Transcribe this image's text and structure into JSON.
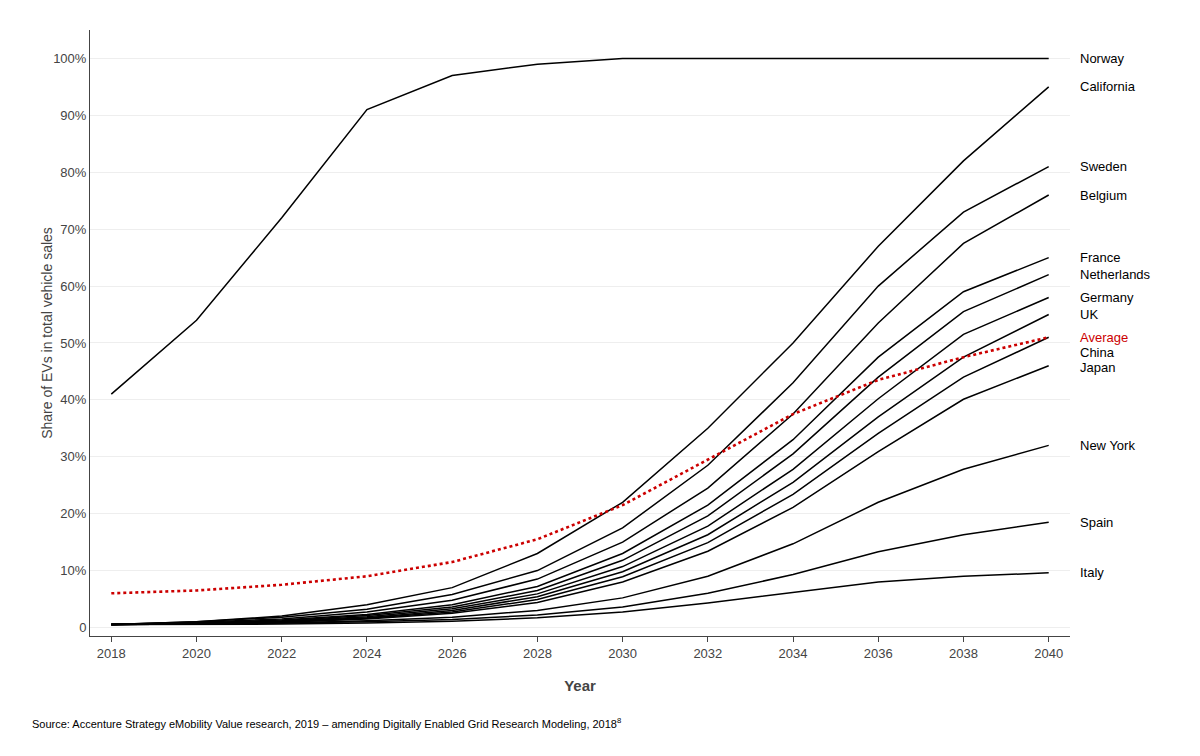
{
  "chart_data": {
    "type": "line",
    "xlabel": "Year",
    "ylabel": "Share of EVs in total vehicle sales",
    "x": [
      2018,
      2020,
      2022,
      2024,
      2026,
      2028,
      2030,
      2032,
      2034,
      2036,
      2038,
      2040
    ],
    "series": [
      {
        "name": "Norway",
        "color": "#000000",
        "line_style": "solid",
        "values": [
          0.41,
          0.54,
          0.72,
          0.91,
          0.97,
          0.99,
          1.0,
          1.0,
          1.0,
          1.0,
          1.0,
          1.0
        ]
      },
      {
        "name": "California",
        "color": "#000000",
        "line_style": "solid",
        "values": [
          0.005,
          0.01,
          0.02,
          0.04,
          0.07,
          0.13,
          0.22,
          0.35,
          0.5,
          0.67,
          0.82,
          0.95
        ]
      },
      {
        "name": "Sweden",
        "color": "#000000",
        "line_style": "solid",
        "values": [
          0.005,
          0.01,
          0.018,
          0.032,
          0.058,
          0.1,
          0.175,
          0.285,
          0.43,
          0.6,
          0.73,
          0.81
        ]
      },
      {
        "name": "Belgium",
        "color": "#000000",
        "line_style": "solid",
        "values": [
          0.005,
          0.009,
          0.015,
          0.027,
          0.048,
          0.085,
          0.15,
          0.245,
          0.375,
          0.535,
          0.675,
          0.76
        ]
      },
      {
        "name": "France",
        "color": "#000000",
        "line_style": "solid",
        "values": [
          0.005,
          0.008,
          0.013,
          0.023,
          0.04,
          0.072,
          0.13,
          0.215,
          0.33,
          0.475,
          0.59,
          0.65
        ]
      },
      {
        "name": "Netherlands",
        "color": "#000000",
        "line_style": "solid",
        "values": [
          0.005,
          0.007,
          0.012,
          0.021,
          0.036,
          0.065,
          0.118,
          0.196,
          0.305,
          0.44,
          0.555,
          0.62
        ]
      },
      {
        "name": "Germany",
        "color": "#000000",
        "line_style": "solid",
        "values": [
          0.005,
          0.007,
          0.011,
          0.019,
          0.033,
          0.059,
          0.107,
          0.178,
          0.278,
          0.402,
          0.515,
          0.58
        ]
      },
      {
        "name": "UK",
        "color": "#000000",
        "line_style": "solid",
        "values": [
          0.005,
          0.006,
          0.01,
          0.017,
          0.03,
          0.054,
          0.098,
          0.163,
          0.255,
          0.37,
          0.475,
          0.55
        ]
      },
      {
        "name": "Average",
        "color": "#cc0000",
        "line_style": "dotted",
        "values": [
          0.06,
          0.065,
          0.075,
          0.09,
          0.115,
          0.155,
          0.215,
          0.295,
          0.375,
          0.435,
          0.475,
          0.51
        ]
      },
      {
        "name": "China",
        "color": "#000000",
        "line_style": "solid",
        "values": [
          0.005,
          0.006,
          0.009,
          0.016,
          0.027,
          0.049,
          0.089,
          0.149,
          0.234,
          0.341,
          0.44,
          0.51
        ]
      },
      {
        "name": "Japan",
        "color": "#000000",
        "line_style": "solid",
        "values": [
          0.005,
          0.006,
          0.009,
          0.015,
          0.025,
          0.044,
          0.08,
          0.134,
          0.211,
          0.309,
          0.401,
          0.46
        ]
      },
      {
        "name": "New York",
        "color": "#000000",
        "line_style": "solid",
        "values": [
          0.005,
          0.006,
          0.008,
          0.012,
          0.018,
          0.03,
          0.052,
          0.09,
          0.147,
          0.22,
          0.278,
          0.32
        ]
      },
      {
        "name": "Spain",
        "color": "#000000",
        "line_style": "solid",
        "values": [
          0.005,
          0.006,
          0.008,
          0.01,
          0.014,
          0.022,
          0.036,
          0.06,
          0.093,
          0.133,
          0.163,
          0.185
        ]
      },
      {
        "name": "Italy",
        "color": "#000000",
        "line_style": "solid",
        "values": [
          0.005,
          0.005,
          0.006,
          0.008,
          0.011,
          0.017,
          0.027,
          0.043,
          0.062,
          0.08,
          0.09,
          0.096
        ]
      }
    ],
    "xlim": [
      2017.5,
      2040.5
    ],
    "xticks": [
      2018,
      2020,
      2022,
      2024,
      2026,
      2028,
      2030,
      2032,
      2034,
      2036,
      2038,
      2040
    ],
    "ylim": [
      -0.015,
      1.05
    ],
    "yticks": [
      0,
      {
        "value": 0.1,
        "label": "10%"
      },
      {
        "value": 0.2,
        "label": "20%"
      },
      {
        "value": 0.3,
        "label": "30%"
      },
      {
        "value": 0.4,
        "label": "40%"
      },
      {
        "value": 0.5,
        "label": "50%"
      },
      {
        "value": 0.6,
        "label": "60%"
      },
      {
        "value": 0.7,
        "label": "70%"
      },
      {
        "value": 0.8,
        "label": "80%"
      },
      {
        "value": 0.9,
        "label": "90%"
      },
      {
        "value": 1.0,
        "label": "100%"
      }
    ],
    "grid": "y",
    "legend": false,
    "annotations": [
      "Source: Accenture Strategy eMobility Value research, 2019 – amending Digitally Enabled Grid Research Modeling, 2018",
      "8"
    ]
  }
}
